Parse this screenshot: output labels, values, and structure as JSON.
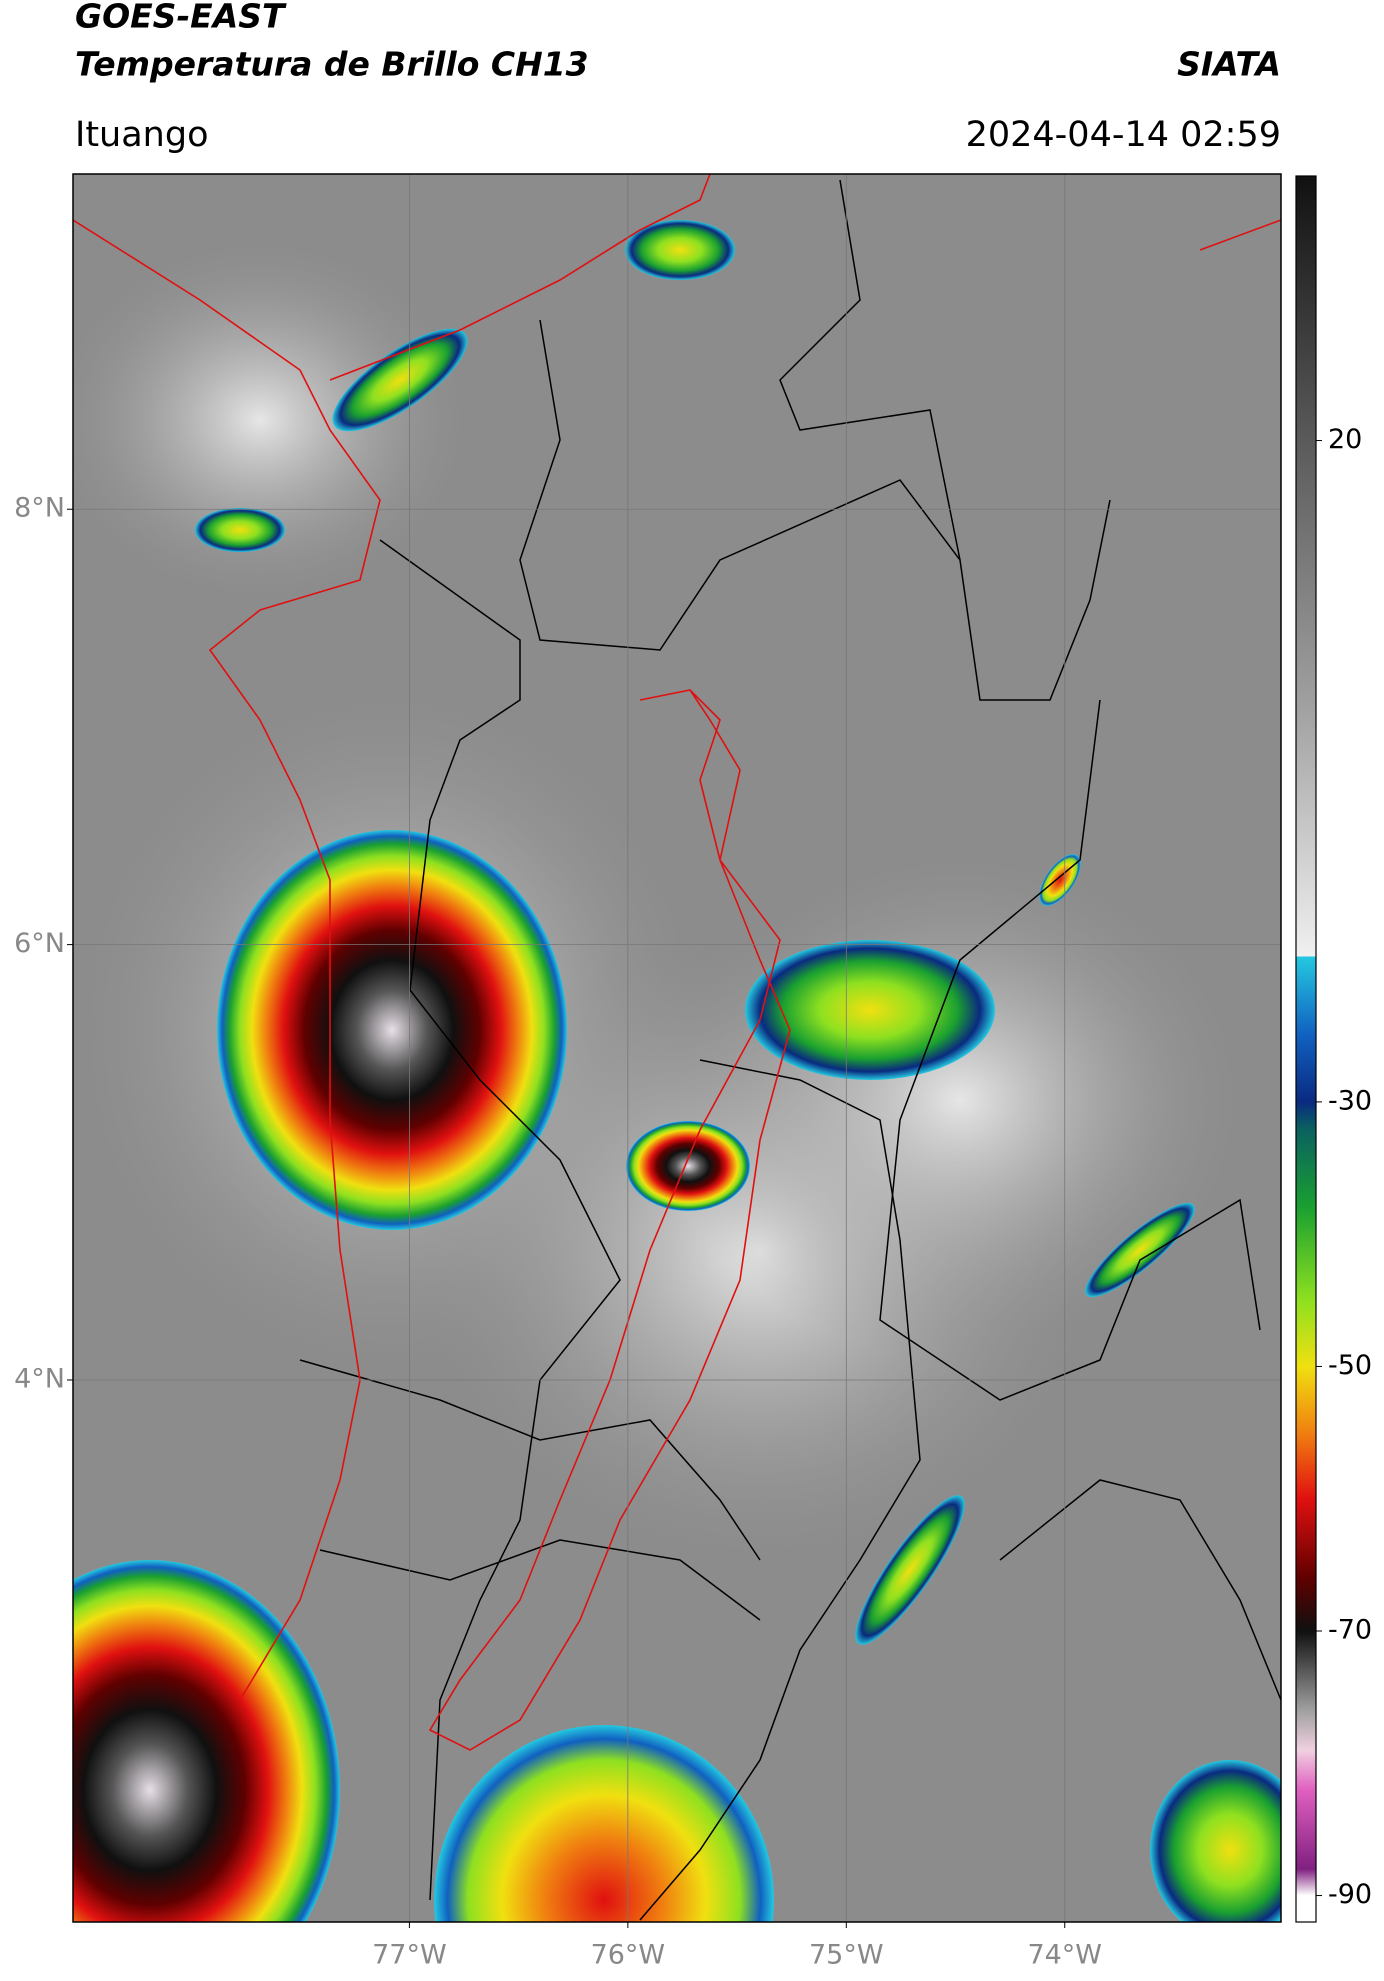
{
  "header": {
    "title": "GOES-EAST",
    "subtitle": "Temperatura de Brillo CH13",
    "agency": "SIATA",
    "location": "Ituango",
    "datetime": "2024-04-14 02:59"
  },
  "map": {
    "xlim": [
      -78.54,
      -73.01
    ],
    "ylim": [
      1.51,
      9.54
    ],
    "xticks": [
      {
        "value": -77,
        "label": "77°W"
      },
      {
        "value": -76,
        "label": "76°W"
      },
      {
        "value": -75,
        "label": "75°W"
      },
      {
        "value": -74,
        "label": "74°W"
      }
    ],
    "yticks": [
      {
        "value": 4,
        "label": "4°N"
      },
      {
        "value": 6,
        "label": "6°N"
      },
      {
        "value": 8,
        "label": "8°N"
      }
    ],
    "grid": true
  },
  "colorbar": {
    "lim": [
      -92,
      40
    ],
    "ticks": [
      20,
      -30,
      -50,
      -70,
      -90
    ],
    "stops": [
      {
        "value": -90,
        "color": "#ffffff"
      },
      {
        "value": -88,
        "color": "#802080"
      },
      {
        "value": -82,
        "color": "#e060c0"
      },
      {
        "value": -79,
        "color": "#f0d0e0"
      },
      {
        "value": -76,
        "color": "#a0a0a0"
      },
      {
        "value": -70,
        "color": "#101010"
      },
      {
        "value": -66,
        "color": "#600000"
      },
      {
        "value": -60,
        "color": "#e01010"
      },
      {
        "value": -55,
        "color": "#f08010"
      },
      {
        "value": -50,
        "color": "#f0e010"
      },
      {
        "value": -45,
        "color": "#8ee020"
      },
      {
        "value": -38,
        "color": "#1aa030"
      },
      {
        "value": -32,
        "color": "#0a6060"
      },
      {
        "value": -30,
        "color": "#0a2a80"
      },
      {
        "value": -25,
        "color": "#1060c0"
      },
      {
        "value": -19,
        "color": "#25c8e0"
      },
      {
        "value": -19,
        "color": "#f0f0f0"
      },
      {
        "value": 0,
        "color": "#a0a0a0"
      },
      {
        "value": 20,
        "color": "#5a5a5a"
      },
      {
        "value": 40,
        "color": "#111111"
      }
    ]
  }
}
